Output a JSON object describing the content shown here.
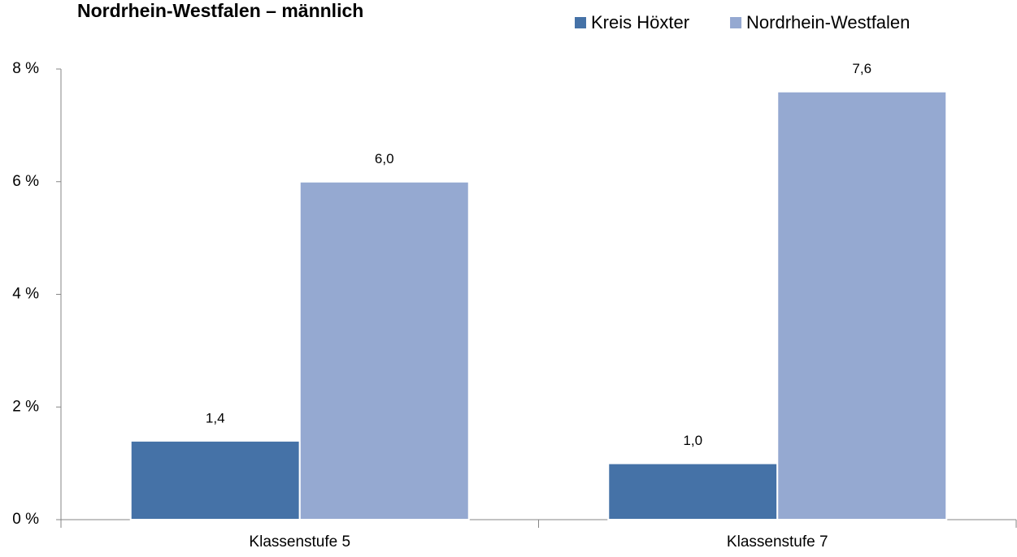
{
  "chart_data": {
    "type": "bar",
    "title": "Nordrhein-Westfalen – männlich",
    "categories": [
      "Klassenstufe 5",
      "Klassenstufe 7"
    ],
    "series": [
      {
        "name": "Kreis Höxter",
        "color": "#4572a7",
        "values": [
          1.4,
          1.0
        ],
        "value_labels": [
          "1,4",
          "1,0"
        ]
      },
      {
        "name": "Nordrhein-Westfalen",
        "color": "#95a9d1",
        "values": [
          6.0,
          7.6
        ],
        "value_labels": [
          "6,0",
          "7,6"
        ]
      }
    ],
    "ylim": [
      0,
      8
    ],
    "yticks": [
      {
        "value": 0,
        "label": "0 %"
      },
      {
        "value": 2,
        "label": "2 %"
      },
      {
        "value": 4,
        "label": "4 %"
      },
      {
        "value": 6,
        "label": "6 %"
      },
      {
        "value": 8,
        "label": "8 %"
      }
    ],
    "grid": false,
    "legend": "top-right"
  }
}
